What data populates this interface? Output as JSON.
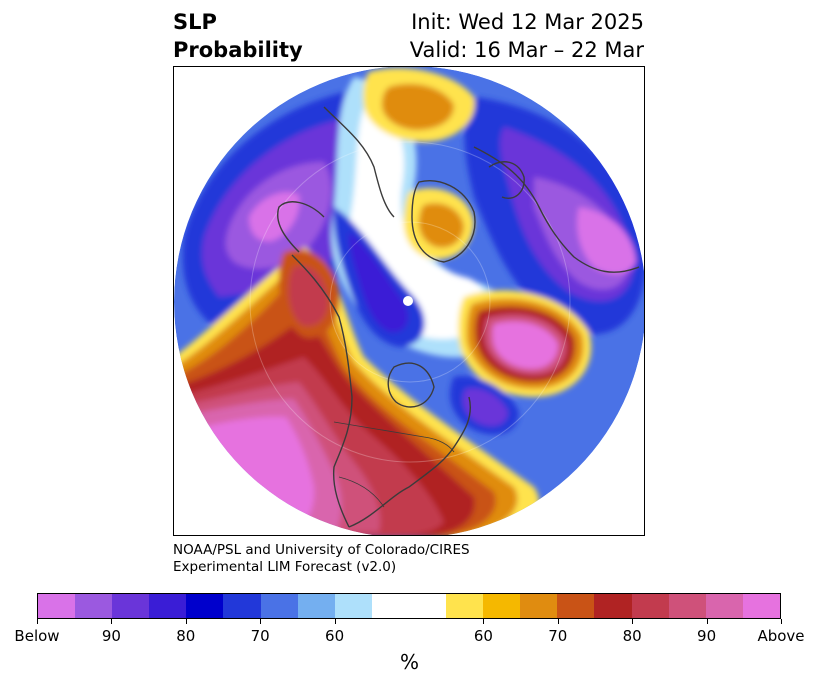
{
  "title": {
    "left_line1": "SLP",
    "left_line2": "Probability",
    "right_line1": "Init: Wed 12 Mar 2025",
    "right_line2": "Valid: 16 Mar – 22 Mar"
  },
  "credit": {
    "line1": "NOAA/PSL and University of Colorado/CIRES",
    "line2": "Experimental LIM Forecast (v2.0)"
  },
  "colorbar": {
    "colors": [
      "#d972e8",
      "#9b59e0",
      "#6a35d9",
      "#3a1dd6",
      "#0000cc",
      "#2238d9",
      "#4a72e6",
      "#74aff0",
      "#aee0fb",
      "#ffffff",
      "#ffffff",
      "#ffe34d",
      "#f5b800",
      "#e08c10",
      "#c95316",
      "#b02323",
      "#c23b4e",
      "#cf517a",
      "#d965ad",
      "#e672df"
    ],
    "tick_labels": [
      "Below",
      "90",
      "80",
      "70",
      "60",
      "60",
      "70",
      "80",
      "90",
      "Above"
    ],
    "unit_label": "%"
  },
  "map": {
    "projection": "north-polar-stereographic",
    "field": "sea-level-pressure-probability",
    "features": [
      {
        "name": "pacific-high",
        "category": "above",
        "level": 90,
        "color": "#e672df"
      },
      {
        "name": "north-atlantic-high",
        "category": "above",
        "level": 90,
        "color": "#e672df"
      },
      {
        "name": "western-us-high",
        "category": "above",
        "level": 80,
        "color": "#b02323"
      },
      {
        "name": "siberia-low",
        "category": "below",
        "level": 90,
        "color": "#9b59e0"
      },
      {
        "name": "europe-low",
        "category": "below",
        "level": 90,
        "color": "#d972e8"
      },
      {
        "name": "greenland-scandinavia-high",
        "category": "above",
        "level": 70,
        "color": "#f5b800"
      },
      {
        "name": "labrador-low",
        "category": "below",
        "level": 80,
        "color": "#6a35d9"
      }
    ]
  }
}
